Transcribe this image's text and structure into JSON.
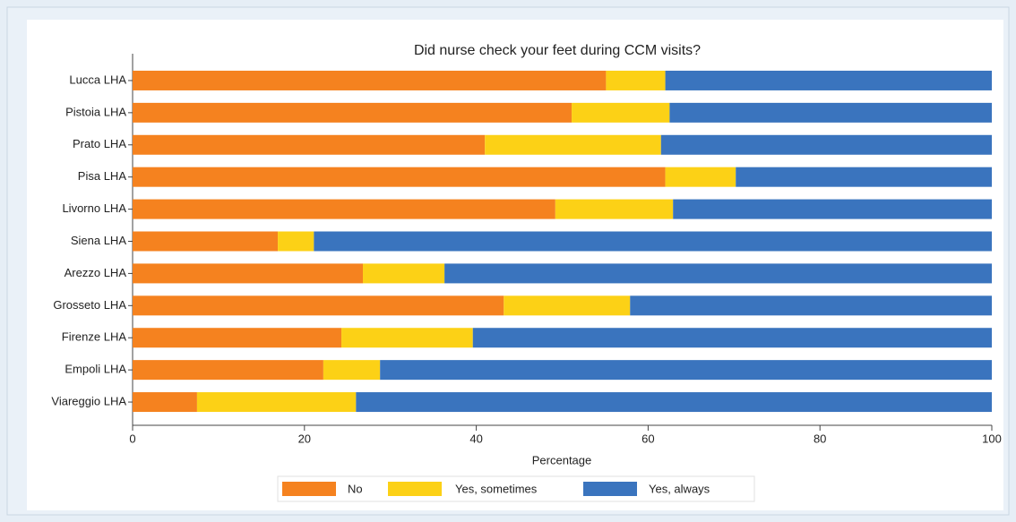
{
  "chart_data": {
    "type": "stacked-bar-horizontal",
    "title": "Did nurse check your feet during CCM visits?",
    "x_label": "Percentage",
    "categories": [
      "Lucca LHA",
      "Pistoia LHA",
      "Prato LHA",
      "Pisa LHA",
      "Livorno LHA",
      "Siena LHA",
      "Arezzo LHA",
      "Grosseto LHA",
      "Firenze LHA",
      "Empoli LHA",
      "Viareggio LHA"
    ],
    "series": [
      {
        "name": "No",
        "color": "#f5821f",
        "values": [
          55.1,
          51.1,
          41.0,
          62.0,
          49.2,
          16.9,
          26.8,
          43.2,
          24.3,
          22.2,
          7.5
        ]
      },
      {
        "name": "Yes, sometimes",
        "color": "#fcd116",
        "values": [
          6.9,
          11.4,
          20.5,
          8.2,
          13.7,
          4.2,
          9.5,
          14.7,
          15.3,
          6.6,
          18.5
        ]
      },
      {
        "name": "Yes, always",
        "color": "#3a74be",
        "values": [
          38.0,
          37.5,
          38.5,
          29.8,
          37.1,
          78.9,
          63.7,
          42.1,
          60.4,
          71.2,
          74.0
        ]
      }
    ],
    "xlim": [
      0,
      100
    ],
    "xticks": [
      0,
      20,
      40,
      60,
      80,
      100
    ]
  }
}
